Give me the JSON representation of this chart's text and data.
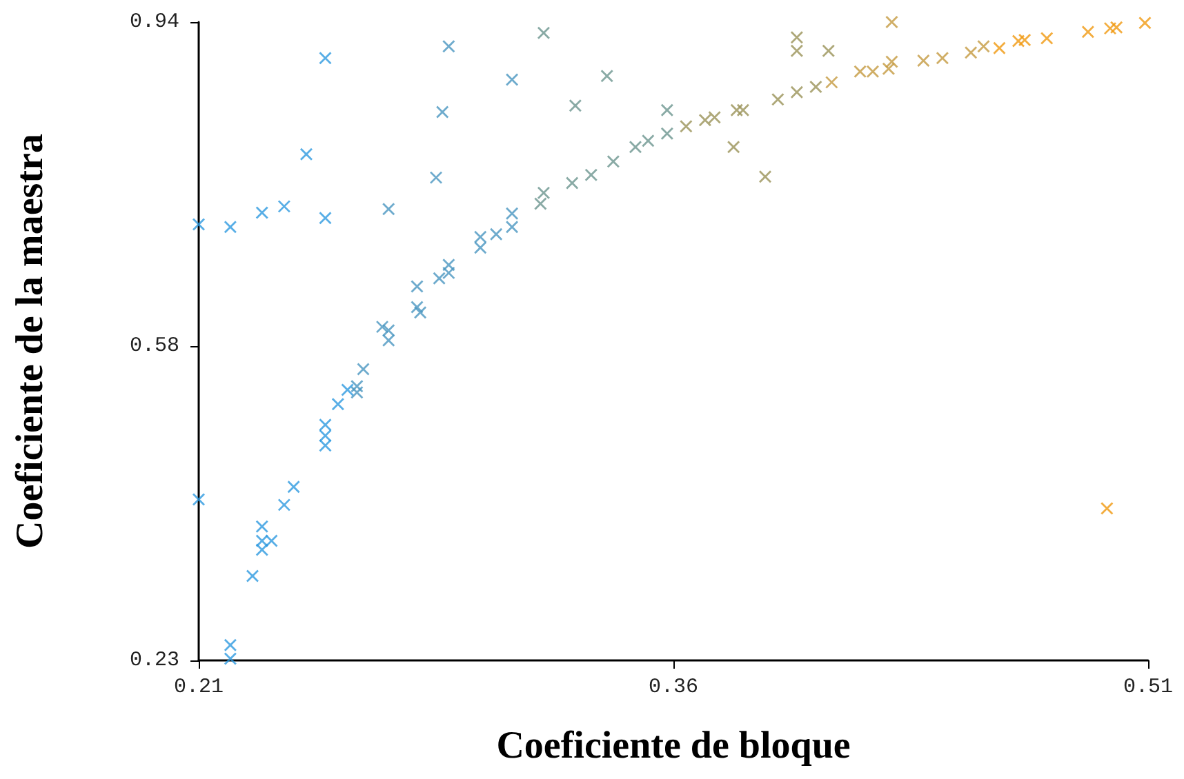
{
  "chart_data": {
    "type": "scatter",
    "xlabel": "Coeficiente de bloque",
    "ylabel": "Coeficiente de la maestra",
    "xlim": [
      0.21,
      0.51
    ],
    "xticks": [
      0.21,
      0.36,
      0.51
    ],
    "ylim": [
      0.23,
      0.94
    ],
    "yticks": [
      0.23,
      0.58,
      0.94
    ],
    "grid": false,
    "marker": "cross",
    "series": [
      {
        "color": "#2e9ae0",
        "x": [
          0.21,
          0.22,
          0.23,
          0.237,
          0.25,
          0.244,
          0.25,
          0.21,
          0.22,
          0.22,
          0.227,
          0.23,
          0.23,
          0.233,
          0.23,
          0.237,
          0.24,
          0.25,
          0.25,
          0.25,
          0.254,
          0.257
        ],
        "values": [
          0.715,
          0.712,
          0.728,
          0.735,
          0.722,
          0.793,
          0.9,
          0.409,
          0.247,
          0.232,
          0.324,
          0.379,
          0.363,
          0.363,
          0.353,
          0.403,
          0.423,
          0.492,
          0.48,
          0.469,
          0.515,
          0.531
        ]
      },
      {
        "color": "#4a96c0",
        "x": [
          0.27,
          0.285,
          0.287,
          0.289,
          0.309,
          0.26,
          0.26,
          0.262,
          0.27,
          0.27,
          0.268,
          0.279,
          0.279,
          0.28,
          0.286,
          0.289,
          0.289,
          0.299,
          0.299,
          0.304,
          0.309,
          0.309
        ],
        "values": [
          0.732,
          0.767,
          0.84,
          0.913,
          0.876,
          0.535,
          0.528,
          0.554,
          0.586,
          0.597,
          0.601,
          0.646,
          0.623,
          0.617,
          0.655,
          0.67,
          0.661,
          0.689,
          0.701,
          0.704,
          0.727,
          0.712
        ]
      },
      {
        "color": "#6c958e",
        "x": [
          0.319,
          0.329,
          0.339,
          0.358,
          0.318,
          0.319,
          0.328,
          0.334,
          0.341,
          0.348,
          0.352,
          0.358
        ],
        "values": [
          0.928,
          0.847,
          0.88,
          0.842,
          0.738,
          0.75,
          0.761,
          0.77,
          0.785,
          0.801,
          0.808,
          0.816
        ]
      },
      {
        "color": "#9a9258",
        "x": [
          0.364,
          0.37,
          0.373,
          0.38,
          0.382,
          0.393,
          0.399,
          0.405,
          0.379,
          0.389,
          0.399,
          0.399,
          0.409
        ],
        "values": [
          0.824,
          0.831,
          0.834,
          0.842,
          0.842,
          0.854,
          0.862,
          0.868,
          0.801,
          0.768,
          0.923,
          0.908,
          0.908
        ]
      },
      {
        "color": "#c49a40",
        "x": [
          0.41,
          0.429,
          0.419,
          0.423,
          0.428,
          0.429,
          0.439,
          0.445,
          0.454,
          0.458
        ],
        "values": [
          0.873,
          0.94,
          0.885,
          0.885,
          0.888,
          0.896,
          0.897,
          0.9,
          0.906,
          0.913
        ]
      },
      {
        "color": "#f0980f",
        "x": [
          0.463,
          0.469,
          0.471,
          0.478,
          0.491,
          0.498,
          0.5,
          0.509,
          0.497
        ],
        "values": [
          0.911,
          0.919,
          0.92,
          0.922,
          0.929,
          0.933,
          0.934,
          0.939,
          0.399
        ]
      }
    ]
  }
}
